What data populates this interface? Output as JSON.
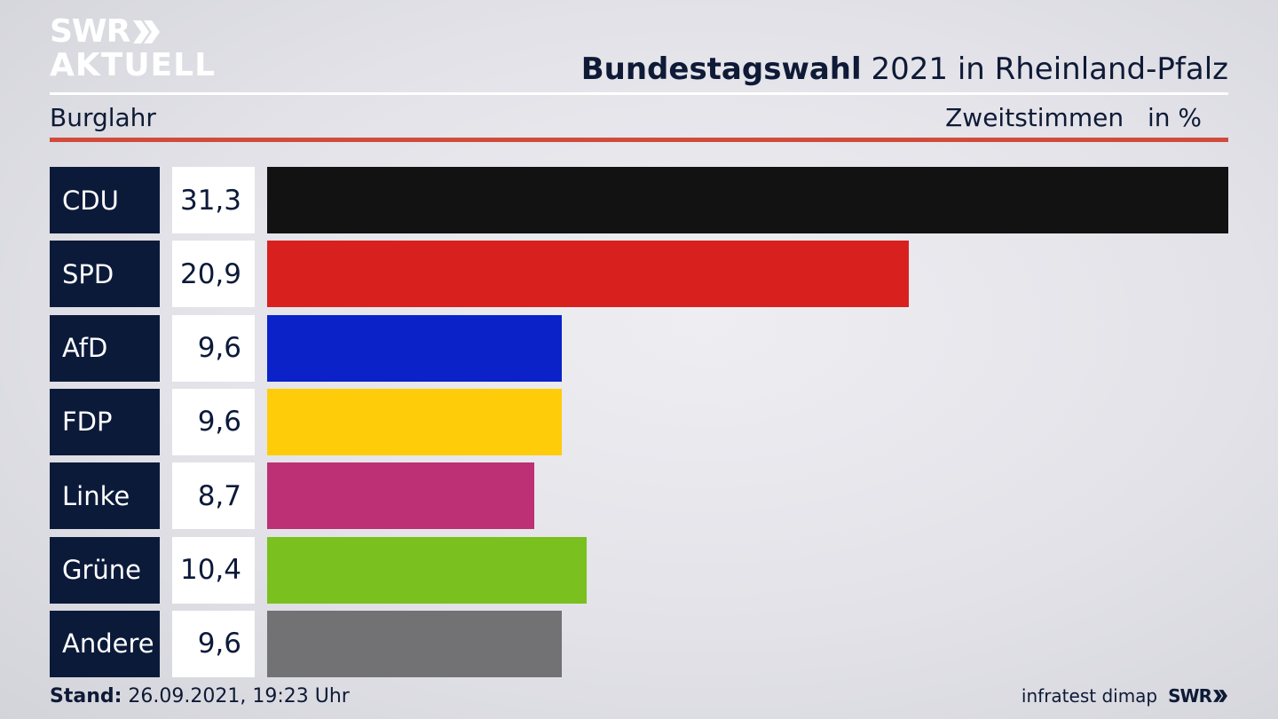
{
  "header": {
    "logo_line1": "SWR",
    "logo_line2": "AKTUELL",
    "title_bold": "Bundestagswahl",
    "title_rest": "2021 in Rheinland-Pfalz",
    "location": "Burglahr",
    "measure": "Zweitstimmen",
    "unit": "in %"
  },
  "chart_data": {
    "type": "bar",
    "orientation": "horizontal",
    "categories": [
      "CDU",
      "SPD",
      "AfD",
      "FDP",
      "Linke",
      "Grüne",
      "Andere"
    ],
    "values": [
      31.3,
      20.9,
      9.6,
      9.6,
      8.7,
      10.4,
      9.6
    ],
    "value_labels": [
      "31,3",
      "20,9",
      "9,6",
      "9,6",
      "8,7",
      "10,4",
      "9,6"
    ],
    "colors": [
      "#121212",
      "#d8211f",
      "#0a22c8",
      "#ffcc0a",
      "#bd3075",
      "#7ac01e",
      "#727275"
    ],
    "xlim": [
      0,
      31.3
    ]
  },
  "footer": {
    "stand_label": "Stand:",
    "stand_value": "26.09.2021, 19:23 Uhr",
    "source": "infratest dimap",
    "brand": "SWR"
  }
}
